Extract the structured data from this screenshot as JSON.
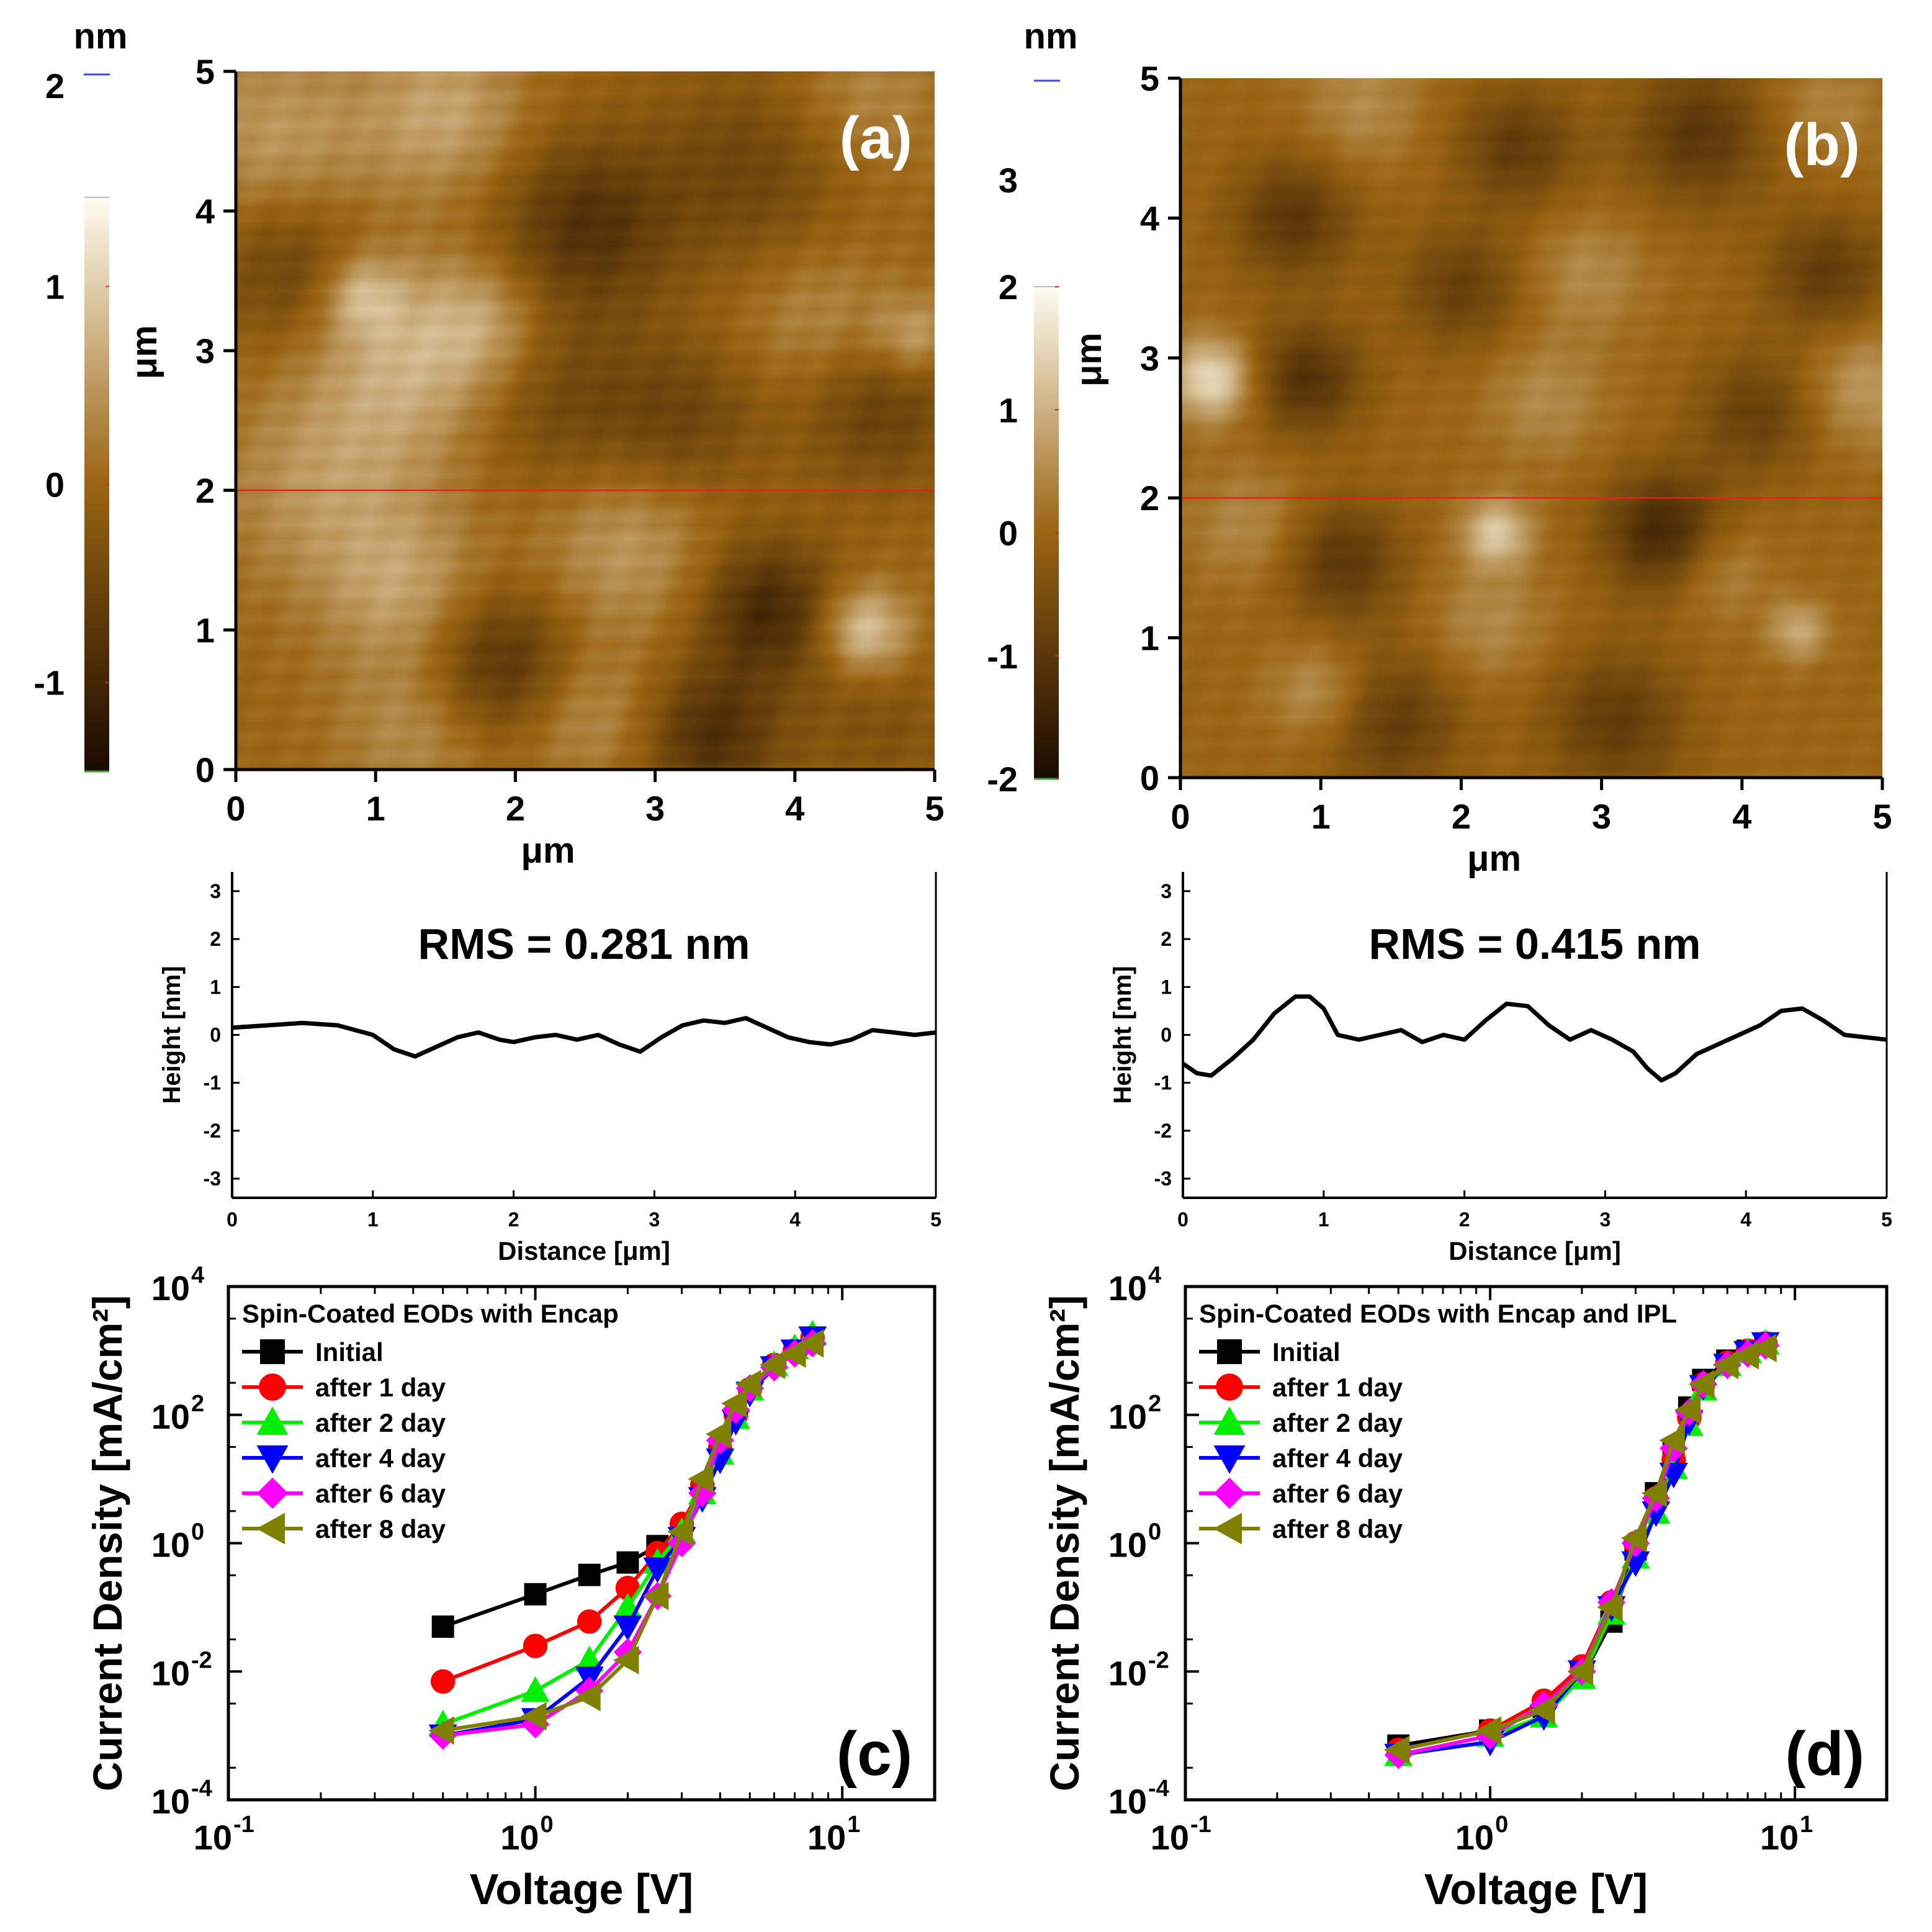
{
  "colors": {
    "afm_dark": "#1a0a00",
    "afm_mid": "#9a6412",
    "afm_light": "#fffdf0",
    "profile_line_red": "#e8201a",
    "initial": "#000000",
    "day1": "#ff0000",
    "day2": "#00ee00",
    "day4": "#0000ff",
    "day6": "#ff00ff",
    "day8": "#808000"
  },
  "chart_data": [
    {
      "id": "a",
      "type": "heatmap",
      "panel_label": "(a)",
      "xlabel": "μm",
      "ylabel": "μm",
      "xlim": [
        0,
        5
      ],
      "ylim": [
        0,
        5
      ],
      "xticks": [
        "0",
        "1",
        "2",
        "3",
        "4",
        "5"
      ],
      "yticks": [
        "0",
        "1",
        "2",
        "3",
        "4",
        "5"
      ],
      "profile_line_y": 2,
      "colorbar": {
        "unit": "nm",
        "range": [
          -1.45,
          1.45
        ],
        "ticks": [
          "-1",
          "0",
          "1"
        ],
        "top_label": "2",
        "top_value": 2
      },
      "features": [
        {
          "x": 4.5,
          "y": 1.0,
          "h": 1.0,
          "s": 0.22
        },
        {
          "x": 3.8,
          "y": 1.15,
          "h": -0.95,
          "s": 0.35
        },
        {
          "x": 3.4,
          "y": 0.25,
          "h": -0.85,
          "s": 0.35
        },
        {
          "x": 1.9,
          "y": 0.75,
          "h": -0.85,
          "s": 0.38
        },
        {
          "x": 2.5,
          "y": 3.9,
          "h": -0.8,
          "s": 0.45
        },
        {
          "x": 1.2,
          "y": 2.9,
          "h": 0.7,
          "s": 0.5
        },
        {
          "x": 0.9,
          "y": 3.4,
          "h": 0.7,
          "s": 0.2
        },
        {
          "x": 1.75,
          "y": 3.2,
          "h": 0.5,
          "s": 0.3
        },
        {
          "x": 0.3,
          "y": 4.5,
          "h": 0.5,
          "s": 0.5
        },
        {
          "x": 1.5,
          "y": 4.7,
          "h": 0.6,
          "s": 0.4
        },
        {
          "x": 0.6,
          "y": 2.0,
          "h": 0.45,
          "s": 0.5
        },
        {
          "x": 0.4,
          "y": 3.6,
          "h": -0.6,
          "s": 0.4
        },
        {
          "x": 3.7,
          "y": 4.3,
          "h": -0.5,
          "s": 0.5
        },
        {
          "x": 4.6,
          "y": 2.6,
          "h": -0.6,
          "s": 0.4
        },
        {
          "x": 2.3,
          "y": 2.6,
          "h": -0.45,
          "s": 0.45
        },
        {
          "x": 3.2,
          "y": 2.5,
          "h": -0.5,
          "s": 0.4
        },
        {
          "x": 2.8,
          "y": 1.6,
          "h": 0.5,
          "s": 0.45
        },
        {
          "x": 1.2,
          "y": 1.3,
          "h": 0.55,
          "s": 0.4
        },
        {
          "x": 4.2,
          "y": 3.2,
          "h": 0.4,
          "s": 0.4
        },
        {
          "x": 4.85,
          "y": 3.1,
          "h": 0.6,
          "s": 0.2
        },
        {
          "x": 4.5,
          "y": 4.8,
          "h": 0.35,
          "s": 0.4
        },
        {
          "x": 1.3,
          "y": 0.3,
          "h": 0.4,
          "s": 0.4
        },
        {
          "x": 2.5,
          "y": 0.4,
          "h": 0.45,
          "s": 0.35
        },
        {
          "x": 4.6,
          "y": 0.3,
          "h": -0.3,
          "s": 0.4
        }
      ]
    },
    {
      "id": "b",
      "type": "heatmap",
      "panel_label": "(b)",
      "xlabel": "μm",
      "ylabel": "μm",
      "xlim": [
        0,
        5
      ],
      "ylim": [
        0,
        5
      ],
      "xticks": [
        "0",
        "1",
        "2",
        "3",
        "4",
        "5"
      ],
      "yticks": [
        "0",
        "1",
        "2",
        "3",
        "4",
        "5"
      ],
      "profile_line_y": 2,
      "colorbar": {
        "unit": "nm",
        "range": [
          -2.0,
          2.0
        ],
        "ticks": [
          "-2",
          "-1",
          "0",
          "1",
          "2"
        ],
        "top_label": "3",
        "top_value": 3.0
      },
      "features": [
        {
          "x": 0.22,
          "y": 2.85,
          "h": 1.6,
          "s": 0.2
        },
        {
          "x": 2.25,
          "y": 1.75,
          "h": 1.3,
          "s": 0.17
        },
        {
          "x": 4.4,
          "y": 1.05,
          "h": 0.9,
          "s": 0.15
        },
        {
          "x": 3.45,
          "y": 1.75,
          "h": -1.4,
          "s": 0.3
        },
        {
          "x": 0.9,
          "y": 2.85,
          "h": -1.1,
          "s": 0.28
        },
        {
          "x": 1.15,
          "y": 1.55,
          "h": -1.0,
          "s": 0.3
        },
        {
          "x": 0.8,
          "y": 4.0,
          "h": -1.0,
          "s": 0.3
        },
        {
          "x": 2.4,
          "y": 4.5,
          "h": -0.9,
          "s": 0.3
        },
        {
          "x": 3.7,
          "y": 4.6,
          "h": -1.0,
          "s": 0.35
        },
        {
          "x": 4.6,
          "y": 3.6,
          "h": -0.9,
          "s": 0.3
        },
        {
          "x": 1.5,
          "y": 0.4,
          "h": -0.9,
          "s": 0.35
        },
        {
          "x": 3.1,
          "y": 0.4,
          "h": -0.9,
          "s": 0.35
        },
        {
          "x": 4.1,
          "y": 2.6,
          "h": -0.8,
          "s": 0.3
        },
        {
          "x": 2.0,
          "y": 3.5,
          "h": -0.8,
          "s": 0.3
        },
        {
          "x": 1.0,
          "y": 0.6,
          "h": 0.7,
          "s": 0.25
        },
        {
          "x": 2.6,
          "y": 2.7,
          "h": 0.5,
          "s": 0.3
        },
        {
          "x": 3.8,
          "y": 1.5,
          "h": 0.6,
          "s": 0.25
        },
        {
          "x": 4.9,
          "y": 2.8,
          "h": 0.7,
          "s": 0.3
        },
        {
          "x": 0.5,
          "y": 1.8,
          "h": 0.5,
          "s": 0.3
        },
        {
          "x": 2.2,
          "y": 1.1,
          "h": 0.5,
          "s": 0.3
        },
        {
          "x": 2.9,
          "y": 3.6,
          "h": 0.5,
          "s": 0.3
        },
        {
          "x": 1.3,
          "y": 4.8,
          "h": 0.5,
          "s": 0.3
        },
        {
          "x": 4.6,
          "y": 4.8,
          "h": 0.4,
          "s": 0.3
        }
      ]
    },
    {
      "id": "a_profile",
      "type": "line",
      "title": "RMS = 0.281 nm",
      "xlabel": "Distance [μm]",
      "ylabel": "Height [nm]",
      "xlim": [
        0,
        5
      ],
      "ylim": [
        -3.4,
        3.4
      ],
      "xticks": [
        "0",
        "1",
        "2",
        "3",
        "4",
        "5"
      ],
      "yticks": [
        "-3",
        "-2",
        "-1",
        "0",
        "1",
        "2",
        "3"
      ],
      "x": [
        0,
        0.25,
        0.5,
        0.75,
        1.0,
        1.15,
        1.3,
        1.45,
        1.6,
        1.75,
        1.9,
        2.0,
        2.15,
        2.3,
        2.45,
        2.6,
        2.75,
        2.9,
        3.05,
        3.2,
        3.35,
        3.5,
        3.65,
        3.8,
        3.95,
        4.1,
        4.25,
        4.4,
        4.55,
        4.7,
        4.85,
        5.0
      ],
      "y": [
        0.15,
        0.2,
        0.25,
        0.2,
        0.0,
        -0.3,
        -0.45,
        -0.25,
        -0.05,
        0.05,
        -0.1,
        -0.15,
        -0.05,
        0.0,
        -0.1,
        0.0,
        -0.2,
        -0.35,
        -0.05,
        0.2,
        0.3,
        0.25,
        0.35,
        0.15,
        -0.05,
        -0.15,
        -0.2,
        -0.1,
        0.1,
        0.05,
        0.0,
        0.05
      ]
    },
    {
      "id": "b_profile",
      "type": "line",
      "title": "RMS = 0.415 nm",
      "xlabel": "Distance [μm]",
      "ylabel": "Height [nm]",
      "xlim": [
        0,
        5
      ],
      "ylim": [
        -3.4,
        3.4
      ],
      "xticks": [
        "0",
        "1",
        "2",
        "3",
        "4",
        "5"
      ],
      "yticks": [
        "-3",
        "-2",
        "-1",
        "0",
        "1",
        "2",
        "3"
      ],
      "x": [
        0,
        0.1,
        0.2,
        0.35,
        0.5,
        0.65,
        0.8,
        0.9,
        1.0,
        1.1,
        1.25,
        1.4,
        1.55,
        1.7,
        1.85,
        2.0,
        2.15,
        2.3,
        2.45,
        2.6,
        2.75,
        2.9,
        3.05,
        3.2,
        3.3,
        3.4,
        3.5,
        3.65,
        3.8,
        3.95,
        4.1,
        4.25,
        4.4,
        4.55,
        4.7,
        4.85,
        5.0
      ],
      "y": [
        -0.6,
        -0.8,
        -0.85,
        -0.5,
        -0.1,
        0.45,
        0.8,
        0.8,
        0.55,
        0.0,
        -0.1,
        0.0,
        0.1,
        -0.15,
        0.0,
        -0.1,
        0.3,
        0.65,
        0.6,
        0.2,
        -0.1,
        0.1,
        -0.1,
        -0.35,
        -0.7,
        -0.95,
        -0.8,
        -0.4,
        -0.2,
        0.0,
        0.2,
        0.5,
        0.55,
        0.3,
        0.0,
        -0.05,
        -0.1
      ]
    },
    {
      "id": "c",
      "type": "scatter",
      "panel_label": "(c)",
      "legend_title": "Spin-Coated EODs with Encap",
      "xlabel": "Voltage [V]",
      "ylabel": "Current Density [mA/cm²]",
      "xscale": "log",
      "yscale": "log",
      "xlim": [
        0.1,
        20
      ],
      "ylim": [
        0.0001,
        10000
      ],
      "xticks": [
        {
          "base": "10",
          "exp": "-1"
        },
        {
          "base": "10",
          "exp": "0"
        },
        {
          "base": "10",
          "exp": "1"
        }
      ],
      "yticks": [
        {
          "base": "10",
          "exp": "-4"
        },
        {
          "base": "10",
          "exp": "-2"
        },
        {
          "base": "10",
          "exp": "0"
        },
        {
          "base": "10",
          "exp": "2"
        },
        {
          "base": "10",
          "exp": "4"
        }
      ],
      "series": [
        {
          "name": "Initial",
          "color": "#000000",
          "marker": "square",
          "x": [
            0.5,
            1.0,
            1.5,
            2.0,
            2.5
          ],
          "y": [
            0.05,
            0.16,
            0.32,
            0.5,
            0.9
          ]
        },
        {
          "name": "after 1 day",
          "color": "#ff0000",
          "marker": "circle",
          "x": [
            0.5,
            1.0,
            1.5,
            2.0,
            2.5,
            3.0,
            3.5,
            4.0,
            4.5,
            5.0,
            6.0,
            7.0,
            8.0
          ],
          "y": [
            0.007,
            0.025,
            0.06,
            0.2,
            0.7,
            2.0,
            8.0,
            30.0,
            100.0,
            250.0,
            600.0,
            1000.0,
            1600.0
          ]
        },
        {
          "name": "after 2 day",
          "color": "#00ee00",
          "marker": "triangle-up",
          "x": [
            0.5,
            1.0,
            1.5,
            2.0,
            2.5,
            3.0,
            3.5,
            4.0,
            4.5,
            5.0,
            6.0,
            7.0,
            8.0
          ],
          "y": [
            0.0015,
            0.005,
            0.015,
            0.1,
            0.5,
            1.5,
            6.0,
            25.0,
            90.0,
            250.0,
            600.0,
            1100.0,
            1800.0
          ]
        },
        {
          "name": "after 4 day",
          "color": "#0000ff",
          "marker": "triangle-down",
          "x": [
            0.5,
            1.0,
            1.5,
            2.0,
            2.5,
            3.0,
            3.5,
            4.0,
            4.5,
            5.0,
            6.0,
            7.0,
            8.0
          ],
          "y": [
            0.001,
            0.0018,
            0.008,
            0.05,
            0.4,
            1.2,
            5.0,
            20.0,
            80.0,
            220.0,
            550.0,
            1000.0,
            1600.0
          ]
        },
        {
          "name": "after 6 day",
          "color": "#ff00ff",
          "marker": "diamond",
          "x": [
            0.5,
            1.0,
            1.5,
            2.0,
            2.5,
            3.0,
            3.5,
            4.0,
            4.5,
            5.0,
            6.0,
            7.0,
            8.0
          ],
          "y": [
            0.001,
            0.0015,
            0.005,
            0.02,
            0.15,
            1.0,
            6.0,
            40.0,
            120.0,
            260.0,
            550.0,
            900.0,
            1300.0
          ]
        },
        {
          "name": "after 8 day",
          "color": "#808000",
          "marker": "triangle-left",
          "x": [
            0.5,
            1.0,
            1.5,
            2.0,
            2.5,
            3.0,
            3.5,
            4.0,
            4.5,
            5.0,
            6.0,
            7.0,
            8.0
          ],
          "y": [
            0.0012,
            0.002,
            0.004,
            0.015,
            0.15,
            1.5,
            10.0,
            50.0,
            150.0,
            300.0,
            600.0,
            900.0,
            1300.0
          ]
        }
      ]
    },
    {
      "id": "d",
      "type": "scatter",
      "panel_label": "(d)",
      "legend_title": "Spin-Coated EODs with Encap and IPL",
      "xlabel": "Voltage [V]",
      "ylabel": "Current Density [mA/cm²]",
      "xscale": "log",
      "yscale": "log",
      "xlim": [
        0.1,
        20
      ],
      "ylim": [
        0.0001,
        10000
      ],
      "xticks": [
        {
          "base": "10",
          "exp": "-1"
        },
        {
          "base": "10",
          "exp": "0"
        },
        {
          "base": "10",
          "exp": "1"
        }
      ],
      "yticks": [
        {
          "base": "10",
          "exp": "-4"
        },
        {
          "base": "10",
          "exp": "-2"
        },
        {
          "base": "10",
          "exp": "0"
        },
        {
          "base": "10",
          "exp": "2"
        },
        {
          "base": "10",
          "exp": "4"
        }
      ],
      "series": [
        {
          "name": "Initial",
          "color": "#000000",
          "marker": "square",
          "x": [
            0.5,
            1.0,
            1.5,
            2.0,
            2.5,
            3.0,
            3.5,
            4.0,
            4.5,
            5.0,
            6.0,
            7.0,
            8.0
          ],
          "y": [
            0.0007,
            0.0012,
            0.0025,
            0.008,
            0.06,
            0.8,
            6.0,
            25.0,
            130.0,
            350.0,
            700.0,
            1000.0,
            1300.0
          ]
        },
        {
          "name": "after 1 day",
          "color": "#ff0000",
          "marker": "circle",
          "x": [
            0.5,
            1.0,
            1.5,
            2.0,
            2.5,
            3.0,
            3.5,
            4.0,
            4.5,
            5.0,
            6.0,
            7.0,
            8.0
          ],
          "y": [
            0.0006,
            0.0012,
            0.0035,
            0.012,
            0.12,
            1.0,
            5.0,
            20.0,
            90.0,
            300.0,
            650.0,
            1000.0,
            1300.0
          ]
        },
        {
          "name": "after 2 day",
          "color": "#00ee00",
          "marker": "triangle-up",
          "x": [
            0.5,
            1.0,
            1.5,
            2.0,
            2.5,
            3.0,
            3.5,
            4.0,
            4.5,
            5.0,
            6.0,
            7.0,
            8.0
          ],
          "y": [
            0.0005,
            0.001,
            0.002,
            0.008,
            0.08,
            0.6,
            3.0,
            15.0,
            70.0,
            250.0,
            600.0,
            950.0,
            1300.0
          ]
        },
        {
          "name": "after 4 day",
          "color": "#0000ff",
          "marker": "triangle-down",
          "x": [
            0.5,
            1.0,
            1.5,
            2.0,
            2.5,
            3.0,
            3.5,
            4.0,
            4.5,
            5.0,
            6.0,
            7.0,
            8.0
          ],
          "y": [
            0.0005,
            0.0008,
            0.002,
            0.01,
            0.1,
            0.5,
            3.0,
            12.0,
            80.0,
            280.0,
            600.0,
            950.0,
            1300.0
          ]
        },
        {
          "name": "after 6 day",
          "color": "#ff00ff",
          "marker": "diamond",
          "x": [
            0.5,
            1.0,
            1.5,
            2.0,
            2.5,
            3.0,
            3.5,
            4.0,
            4.5,
            5.0,
            6.0,
            7.0,
            8.0
          ],
          "y": [
            0.0005,
            0.001,
            0.003,
            0.01,
            0.12,
            1.0,
            5.0,
            30.0,
            110.0,
            300.0,
            600.0,
            900.0,
            1200.0
          ]
        },
        {
          "name": "after 8 day",
          "color": "#808000",
          "marker": "triangle-left",
          "x": [
            0.5,
            1.0,
            1.5,
            2.0,
            2.5,
            3.0,
            3.5,
            4.0,
            4.5,
            5.0,
            6.0,
            7.0,
            8.0
          ],
          "y": [
            0.0006,
            0.0012,
            0.0025,
            0.01,
            0.1,
            1.2,
            6.0,
            40.0,
            120.0,
            300.0,
            600.0,
            850.0,
            1100.0
          ]
        }
      ]
    }
  ]
}
